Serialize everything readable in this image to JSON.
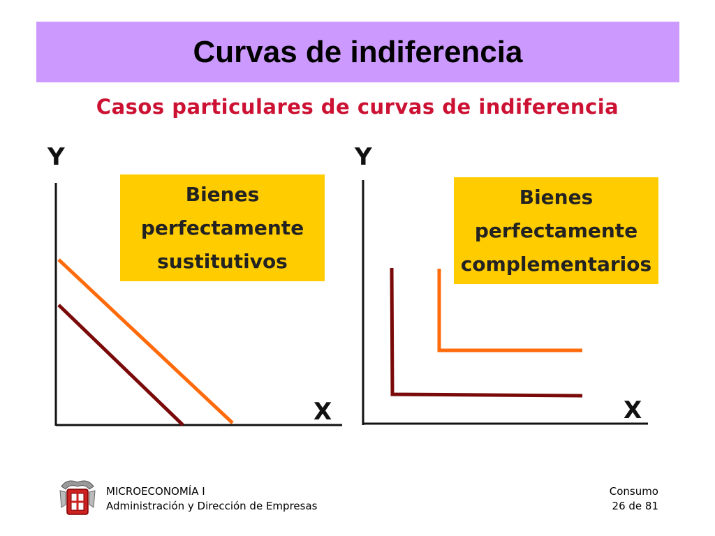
{
  "slide": {
    "title": "Curvas de indiferencia",
    "subtitle": "Casos particulares de curvas de indiferencia"
  },
  "left_panel": {
    "y_label": "Y",
    "x_label": "X",
    "box_lines": [
      "Bienes",
      "perfectamente",
      "sustitutivos"
    ]
  },
  "right_panel": {
    "y_label": "Y",
    "x_label": "X",
    "box_lines": [
      "Bienes",
      "perfectamente",
      "complementarios"
    ]
  },
  "colors": {
    "title_bg": "#cc99ff",
    "subtitle": "#cc1133",
    "box_bg": "#ffcc00",
    "curve_dark": "#7a0a0a",
    "curve_orange": "#ff6a0a"
  },
  "footer": {
    "course": "MICROECONOMÍA I",
    "degree": "Administración y Dirección de Empresas",
    "topic": "Consumo",
    "page": "26 de 81"
  }
}
